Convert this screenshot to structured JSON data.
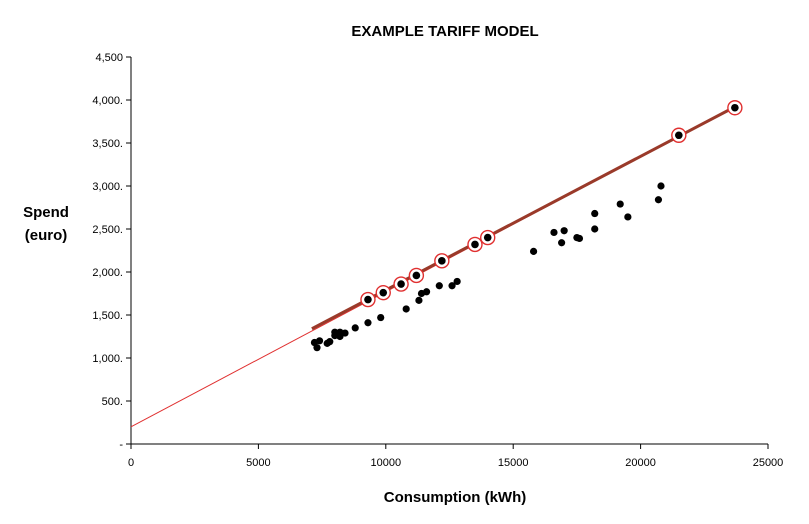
{
  "chart_data": {
    "type": "scatter",
    "title": "EXAMPLE TARIFF MODEL",
    "xlabel": "Consumption (kWh)",
    "ylabel_lines": [
      "Spend",
      "(euro)"
    ],
    "xlim": [
      0,
      25000
    ],
    "ylim": [
      0,
      4500
    ],
    "x_ticks": [
      {
        "value": 0,
        "label": "0"
      },
      {
        "value": 5000,
        "label": "5000"
      },
      {
        "value": 10000,
        "label": "10000"
      },
      {
        "value": 15000,
        "label": "15000"
      },
      {
        "value": 20000,
        "label": "20000"
      },
      {
        "value": 25000,
        "label": "25000"
      }
    ],
    "y_ticks": [
      {
        "value": 0,
        "label": "-"
      },
      {
        "value": 500,
        "label": "500."
      },
      {
        "value": 1000,
        "label": "1,000."
      },
      {
        "value": 1500,
        "label": "1,500."
      },
      {
        "value": 2000,
        "label": "2,000."
      },
      {
        "value": 2500,
        "label": "2,500."
      },
      {
        "value": 3000,
        "label": "3,000."
      },
      {
        "value": 3500,
        "label": "3,500."
      },
      {
        "value": 4000,
        "label": "4,000."
      },
      {
        "value": 4500,
        "label": "4,500"
      }
    ],
    "grid": false,
    "legend": "none",
    "colors": {
      "points": "#000000",
      "highlight_ring": "#e03030",
      "model_line": "#e03030",
      "fit_line": "#9a3a2a"
    },
    "model_line": {
      "x": [
        0,
        23700
      ],
      "y": [
        200,
        3920
      ]
    },
    "fit_line": {
      "x": [
        7100,
        23700
      ],
      "y": [
        1340,
        3920
      ]
    },
    "points": [
      {
        "x": 7200,
        "y": 1180
      },
      {
        "x": 7300,
        "y": 1120
      },
      {
        "x": 7400,
        "y": 1200
      },
      {
        "x": 7700,
        "y": 1170
      },
      {
        "x": 7800,
        "y": 1190
      },
      {
        "x": 8000,
        "y": 1260
      },
      {
        "x": 8000,
        "y": 1300
      },
      {
        "x": 8200,
        "y": 1300
      },
      {
        "x": 8200,
        "y": 1250
      },
      {
        "x": 8400,
        "y": 1290
      },
      {
        "x": 8800,
        "y": 1350
      },
      {
        "x": 9300,
        "y": 1410
      },
      {
        "x": 9800,
        "y": 1470
      },
      {
        "x": 10800,
        "y": 1570
      },
      {
        "x": 11300,
        "y": 1670
      },
      {
        "x": 11400,
        "y": 1750
      },
      {
        "x": 11600,
        "y": 1770
      },
      {
        "x": 12100,
        "y": 1840
      },
      {
        "x": 12600,
        "y": 1840
      },
      {
        "x": 12800,
        "y": 1890
      },
      {
        "x": 15800,
        "y": 2240
      },
      {
        "x": 16600,
        "y": 2460
      },
      {
        "x": 16900,
        "y": 2340
      },
      {
        "x": 17000,
        "y": 2480
      },
      {
        "x": 17500,
        "y": 2400
      },
      {
        "x": 17600,
        "y": 2390
      },
      {
        "x": 18200,
        "y": 2680
      },
      {
        "x": 18200,
        "y": 2500
      },
      {
        "x": 19200,
        "y": 2790
      },
      {
        "x": 19500,
        "y": 2640
      },
      {
        "x": 20700,
        "y": 2840
      },
      {
        "x": 20800,
        "y": 3000
      }
    ],
    "highlighted_points": [
      {
        "x": 9300,
        "y": 1680
      },
      {
        "x": 9900,
        "y": 1760
      },
      {
        "x": 10600,
        "y": 1860
      },
      {
        "x": 11200,
        "y": 1960
      },
      {
        "x": 12200,
        "y": 2130
      },
      {
        "x": 13500,
        "y": 2320
      },
      {
        "x": 14000,
        "y": 2400
      },
      {
        "x": 21500,
        "y": 3590
      },
      {
        "x": 23700,
        "y": 3910
      }
    ]
  }
}
